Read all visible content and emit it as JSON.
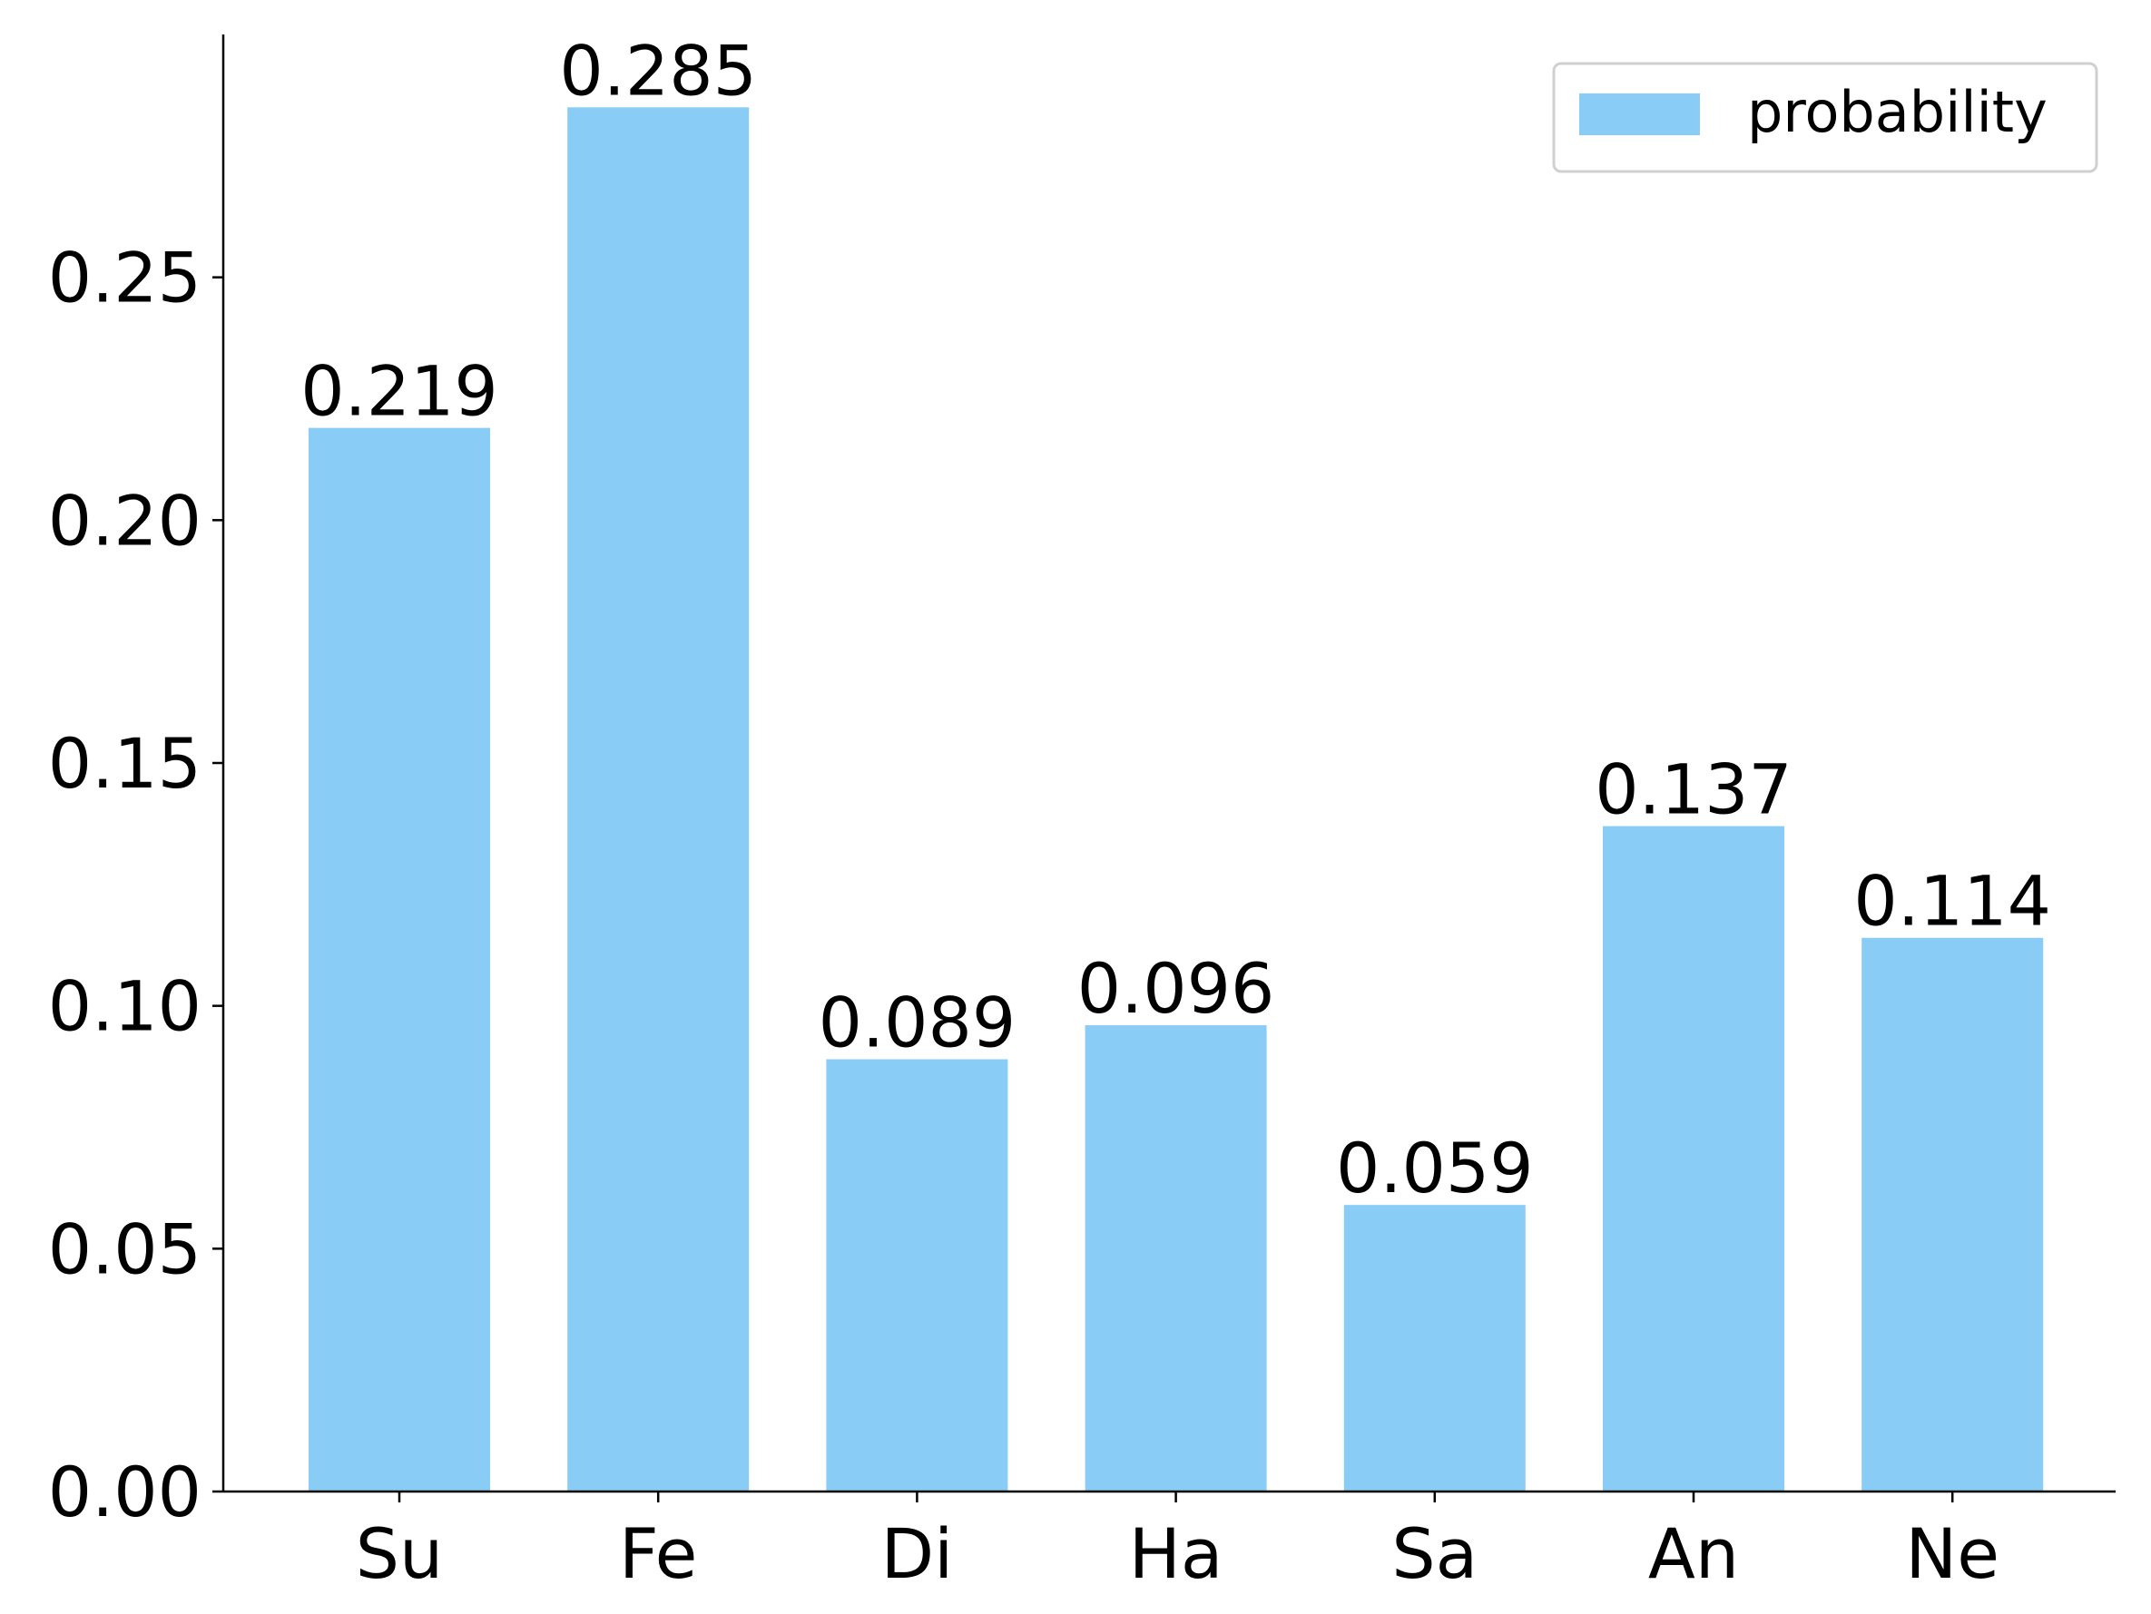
{
  "chart_data": {
    "type": "bar",
    "categories": [
      "Su",
      "Fe",
      "Di",
      "Ha",
      "Sa",
      "An",
      "Ne"
    ],
    "series": [
      {
        "name": "probability",
        "values": [
          0.219,
          0.285,
          0.089,
          0.096,
          0.059,
          0.137,
          0.114
        ],
        "data_labels": [
          "0.219",
          "0.285",
          "0.089",
          "0.096",
          "0.059",
          "0.137",
          "0.114"
        ],
        "color": "#89CDF7"
      }
    ],
    "title": "",
    "xlabel": "",
    "ylabel": "",
    "ylim": [
      0,
      0.3
    ],
    "yticks": [
      0.0,
      0.05,
      0.1,
      0.15,
      0.2,
      0.25
    ],
    "ytick_labels": [
      "0.00",
      "0.05",
      "0.10",
      "0.15",
      "0.20",
      "0.25"
    ],
    "grid": false,
    "legend": {
      "position": "top-right",
      "entries": [
        "probability"
      ]
    },
    "spines": [
      "left",
      "bottom"
    ],
    "axis_color": "#000000"
  }
}
